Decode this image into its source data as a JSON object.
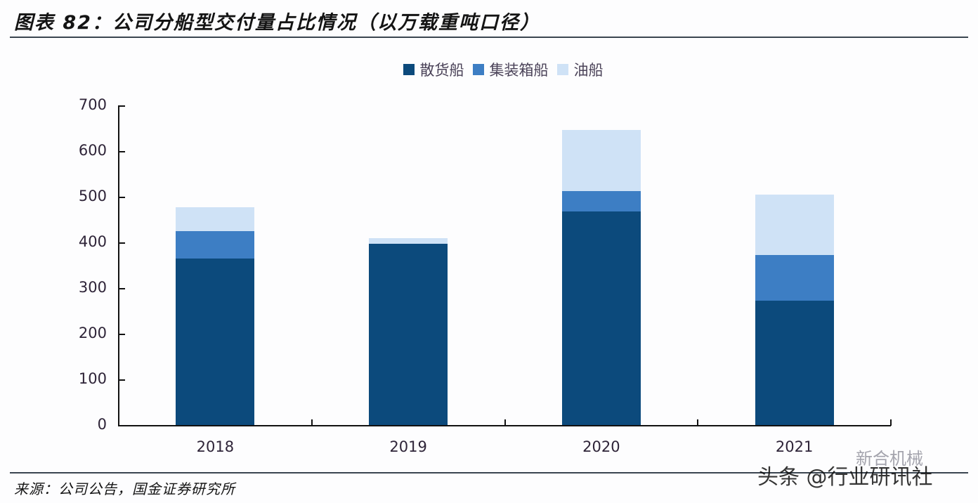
{
  "header": {
    "title": "图表 82：公司分船型交付量占比情况（以万载重吨口径）"
  },
  "legend": [
    {
      "label": "散货船",
      "color": "#0c4a7c"
    },
    {
      "label": "集装箱船",
      "color": "#3d7ec4"
    },
    {
      "label": "油船",
      "color": "#cfe2f6"
    }
  ],
  "footer": {
    "source": "来源：公司公告，国金证券研究所",
    "watermark": "头条 @行业研讯社",
    "watermark_secondary": "新合机械"
  },
  "chart_data": {
    "type": "bar",
    "stacked": true,
    "title": "图表 82：公司分船型交付量占比情况（以万载重吨口径）",
    "xlabel": "",
    "ylabel": "",
    "categories": [
      "2018",
      "2019",
      "2020",
      "2021"
    ],
    "series": [
      {
        "name": "散货船",
        "color": "#0c4a7c",
        "values": [
          365,
          397,
          468,
          272
        ]
      },
      {
        "name": "集装箱船",
        "color": "#3d7ec4",
        "values": [
          60,
          0,
          44,
          100
        ]
      },
      {
        "name": "油船",
        "color": "#cfe2f6",
        "values": [
          52,
          12,
          134,
          133
        ]
      }
    ],
    "ylim": [
      0,
      700
    ],
    "yticks": [
      0,
      100,
      200,
      300,
      400,
      500,
      600,
      700
    ],
    "grid": false,
    "legend_position": "top"
  }
}
